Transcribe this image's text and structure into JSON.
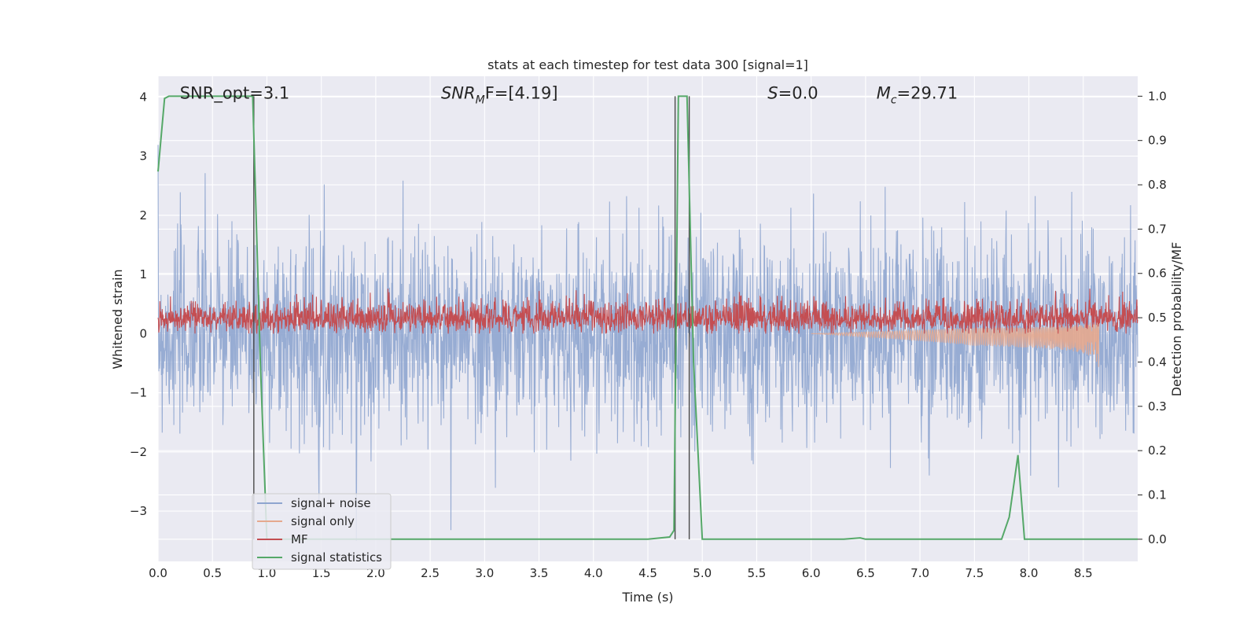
{
  "chart_data": {
    "type": "line",
    "title": "stats at each timestep for test data 300 [signal=1]",
    "xlabel": "Time (s)",
    "ylabel_left": "Whitened strain",
    "ylabel_right": "Detection probability/MF",
    "xlim": [
      0,
      9.0
    ],
    "ylim_left": [
      -3.85,
      4.35
    ],
    "ylim_right": [
      -0.05,
      1.045
    ],
    "x_ticks": [
      "0.0",
      "0.5",
      "1.0",
      "1.5",
      "2.0",
      "2.5",
      "3.0",
      "3.5",
      "4.0",
      "4.5",
      "5.0",
      "5.5",
      "6.0",
      "6.5",
      "7.0",
      "7.5",
      "8.0",
      "8.5"
    ],
    "y_ticks_left": [
      "−3",
      "−2",
      "−1",
      "0",
      "1",
      "2",
      "3",
      "4"
    ],
    "y_ticks_right": [
      "0.0",
      "0.1",
      "0.2",
      "0.3",
      "0.4",
      "0.5",
      "0.6",
      "0.7",
      "0.8",
      "0.9",
      "1.0"
    ],
    "grid": true,
    "background": "#eaeaf2",
    "annotations": [
      {
        "text": "SNR_opt=3.1",
        "x": 0.2,
        "y": 4.0,
        "math": false
      },
      {
        "text": "SNR",
        "sub": "M",
        "after": "F=[4.19]",
        "x": 2.6,
        "y": 4.0,
        "math": true
      },
      {
        "text": "S",
        "after": "=0.0",
        "x": 5.6,
        "y": 4.0,
        "math": true
      },
      {
        "text": "M",
        "sub": "c",
        "after": "=29.71",
        "x": 6.6,
        "y": 4.0,
        "math": true
      }
    ],
    "vertical_lines": [
      {
        "x": 0.88,
        "color": "#4a4a4a"
      },
      {
        "x": 4.75,
        "color": "#4a4a4a"
      },
      {
        "x": 4.88,
        "color": "#4a4a4a"
      }
    ],
    "series": [
      {
        "name": "signal+ noise",
        "color": "#8ea5cf",
        "axis": "left",
        "style": "noise",
        "sigma": 0.82,
        "x_range": [
          0,
          9.0
        ]
      },
      {
        "name": "signal only",
        "color": "#e5a98e",
        "axis": "left",
        "style": "chirp",
        "x_range": [
          6.0,
          8.66
        ],
        "peak_time": 8.66,
        "peak_amplitude": 0.7
      },
      {
        "name": "MF",
        "color": "#c44e52",
        "axis": "left",
        "style": "noise",
        "baseline": 0.25,
        "spread": 0.16,
        "x_range": [
          0,
          9.0
        ]
      },
      {
        "name": "signal statistics",
        "color": "#55a868",
        "axis": "right",
        "style": "line",
        "x": [
          0.0,
          0.06,
          0.1,
          0.2,
          0.4,
          0.6,
          0.8,
          0.87,
          0.94,
          1.0,
          1.2,
          2.0,
          3.0,
          4.0,
          4.5,
          4.7,
          4.74,
          4.78,
          4.83,
          4.86,
          4.92,
          5.0,
          5.5,
          6.0,
          6.3,
          6.45,
          6.5,
          6.8,
          7.0,
          7.5,
          7.75,
          7.82,
          7.9,
          7.96,
          8.1,
          8.5,
          9.0
        ],
        "y": [
          0.83,
          0.995,
          1.0,
          1.0,
          1.0,
          1.0,
          1.0,
          1.0,
          0.4,
          0.0,
          0.0,
          0.0,
          0.0,
          0.0,
          0.0,
          0.005,
          0.02,
          1.0,
          1.0,
          1.0,
          0.4,
          0.0,
          0.0,
          0.0,
          0.0,
          0.003,
          0.0,
          0.0,
          0.0,
          0.0,
          0.0,
          0.05,
          0.19,
          0.0,
          0.0,
          0.0,
          0.0
        ]
      }
    ],
    "legend": {
      "placement": "lower-left",
      "entries": [
        "signal+ noise",
        "signal only",
        "MF",
        "signal statistics"
      ]
    }
  }
}
